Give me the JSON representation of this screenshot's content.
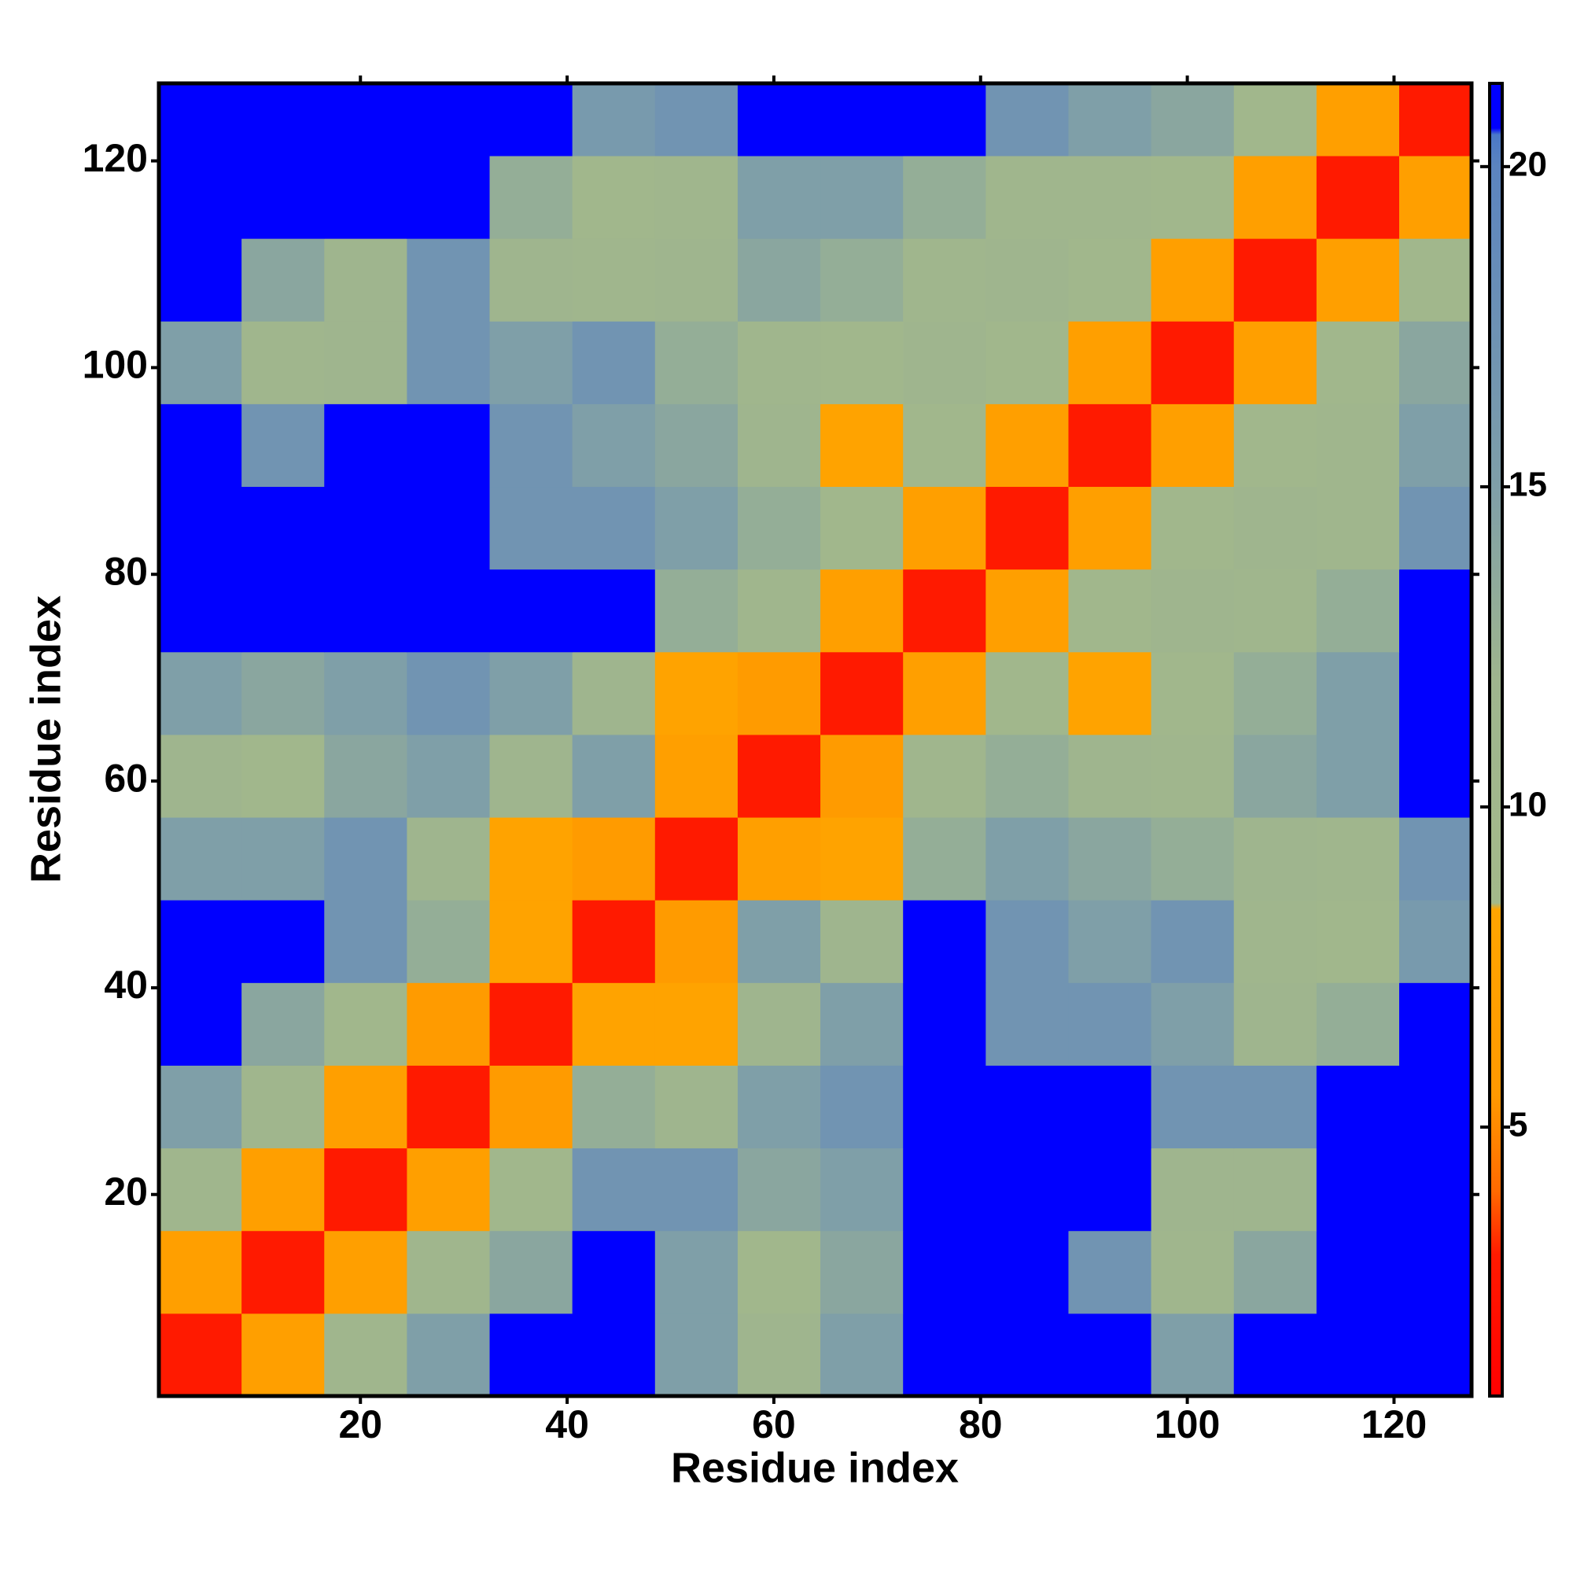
{
  "chart_data": {
    "type": "heatmap",
    "xlabel": "Residue index",
    "ylabel": "Residue index",
    "x": [
      4.5,
      12.5,
      20.5,
      28.5,
      36.5,
      44.5,
      52.5,
      60.5,
      68.5,
      76.5,
      84.5,
      92.5,
      100.5,
      108.5,
      116.5,
      124.5
    ],
    "y": [
      4.5,
      12.5,
      20.5,
      28.5,
      36.5,
      44.5,
      52.5,
      60.5,
      68.5,
      76.5,
      84.5,
      92.5,
      100.5,
      108.5,
      116.5,
      124.5
    ],
    "z": [
      [
        3,
        7,
        11,
        15,
        21,
        21,
        15,
        12,
        15,
        21,
        21,
        21,
        15,
        21,
        21,
        21
      ],
      [
        7,
        3,
        7,
        11,
        14,
        21,
        15,
        10,
        14,
        21,
        21,
        17,
        11,
        14,
        21,
        21
      ],
      [
        11,
        7,
        3,
        7,
        10,
        17,
        17,
        14,
        15,
        21,
        21,
        21,
        12,
        12,
        21,
        21
      ],
      [
        15,
        11,
        7,
        3,
        6,
        13,
        12,
        15,
        17,
        21,
        21,
        21,
        17,
        17,
        21,
        21
      ],
      [
        21,
        14,
        10,
        6,
        3,
        8,
        8,
        12,
        15,
        21,
        17,
        17,
        15,
        12,
        13,
        21
      ],
      [
        21,
        21,
        17,
        13,
        8,
        3,
        6,
        15,
        12,
        21,
        17,
        15,
        17,
        11,
        10,
        16
      ],
      [
        15,
        15,
        17,
        12,
        8,
        6,
        3,
        7,
        8,
        13,
        15,
        14,
        13,
        12,
        11,
        17
      ],
      [
        12,
        10,
        14,
        15,
        12,
        15,
        7,
        3,
        6,
        11,
        13,
        12,
        11,
        14,
        15,
        21
      ],
      [
        15,
        14,
        15,
        17,
        15,
        12,
        8,
        6,
        3,
        7,
        10,
        8,
        10,
        13,
        15,
        21
      ],
      [
        21,
        21,
        21,
        21,
        21,
        21,
        13,
        11,
        7,
        3,
        7,
        10,
        12,
        11,
        13,
        21
      ],
      [
        21,
        21,
        21,
        21,
        17,
        17,
        15,
        13,
        10,
        7,
        3,
        7,
        10,
        12,
        11,
        17
      ],
      [
        21,
        17,
        21,
        21,
        17,
        15,
        14,
        12,
        8,
        10,
        7,
        3,
        7,
        10,
        11,
        15
      ],
      [
        15,
        11,
        12,
        17,
        15,
        17,
        13,
        11,
        10,
        12,
        10,
        7,
        3,
        7,
        10,
        14
      ],
      [
        21,
        14,
        12,
        17,
        12,
        11,
        12,
        14,
        13,
        11,
        12,
        10,
        7,
        3,
        7,
        10
      ],
      [
        21,
        21,
        21,
        21,
        13,
        10,
        11,
        15,
        15,
        13,
        11,
        11,
        10,
        7,
        3,
        7
      ],
      [
        21,
        21,
        21,
        21,
        21,
        16,
        17,
        21,
        21,
        21,
        17,
        15,
        14,
        10,
        7,
        3
      ]
    ],
    "xlim": [
      0.5,
      127.5
    ],
    "ylim": [
      0.5,
      127.5
    ],
    "xticks": [
      20,
      40,
      60,
      80,
      100,
      120
    ],
    "yticks": [
      20,
      40,
      60,
      80,
      100,
      120
    ],
    "zlim": [
      0.8,
      21.3
    ],
    "zticks": [
      5,
      10,
      15,
      20
    ],
    "colorscale": [
      [
        0.8,
        "#ff0000"
      ],
      [
        3,
        "#ff1a00"
      ],
      [
        4,
        "#ff6a00"
      ],
      [
        5.5,
        "#ff9900"
      ],
      [
        8.4,
        "#ffa500"
      ],
      [
        8.5,
        "#a3b98a"
      ],
      [
        12,
        "#9fb58e"
      ],
      [
        15,
        "#7f9fa8"
      ],
      [
        20,
        "#5b84c0"
      ],
      [
        20.5,
        "#4a78c8"
      ],
      [
        20.6,
        "#0000ff"
      ],
      [
        21.3,
        "#0000ff"
      ]
    ]
  }
}
